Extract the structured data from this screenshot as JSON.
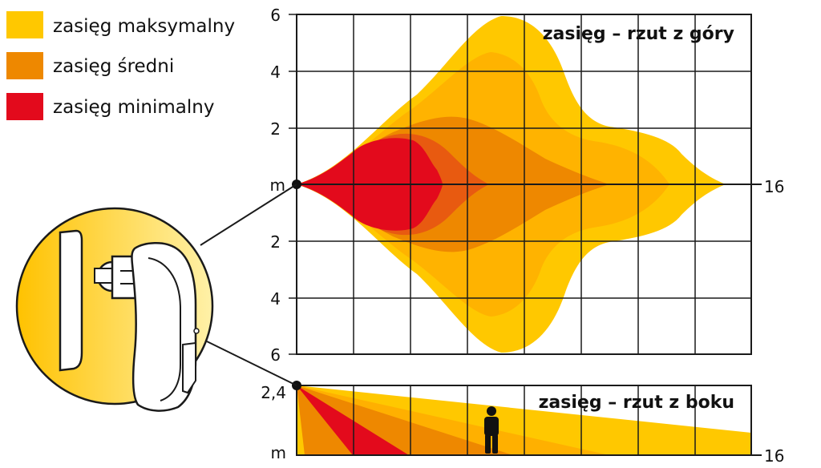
{
  "colors": {
    "max": "#ffc800",
    "mid": "#ee8800",
    "min": "#e30a1c",
    "grid": "#1a1a1a"
  },
  "legend": [
    {
      "label": "zasięg maksymalny",
      "color": "#ffc800"
    },
    {
      "label": "zasięg średni",
      "color": "#ee8800"
    },
    {
      "label": "zasięg minimalny",
      "color": "#e30a1c"
    }
  ],
  "top_view": {
    "title": "zasięg – rzut z góry",
    "y_tick_labels": [
      "6",
      "4",
      "2",
      "m",
      "2",
      "4",
      "6"
    ],
    "x_end_label": "16",
    "x_range": [
      0,
      16
    ],
    "y_range": [
      -6,
      6
    ],
    "icons": [
      "motion-detector-icon"
    ]
  },
  "side_view": {
    "title": "zasięg – rzut z boku",
    "y_tick_labels": [
      "2,4",
      "m"
    ],
    "x_end_label": "16",
    "icons": [
      "person-icon"
    ]
  }
}
